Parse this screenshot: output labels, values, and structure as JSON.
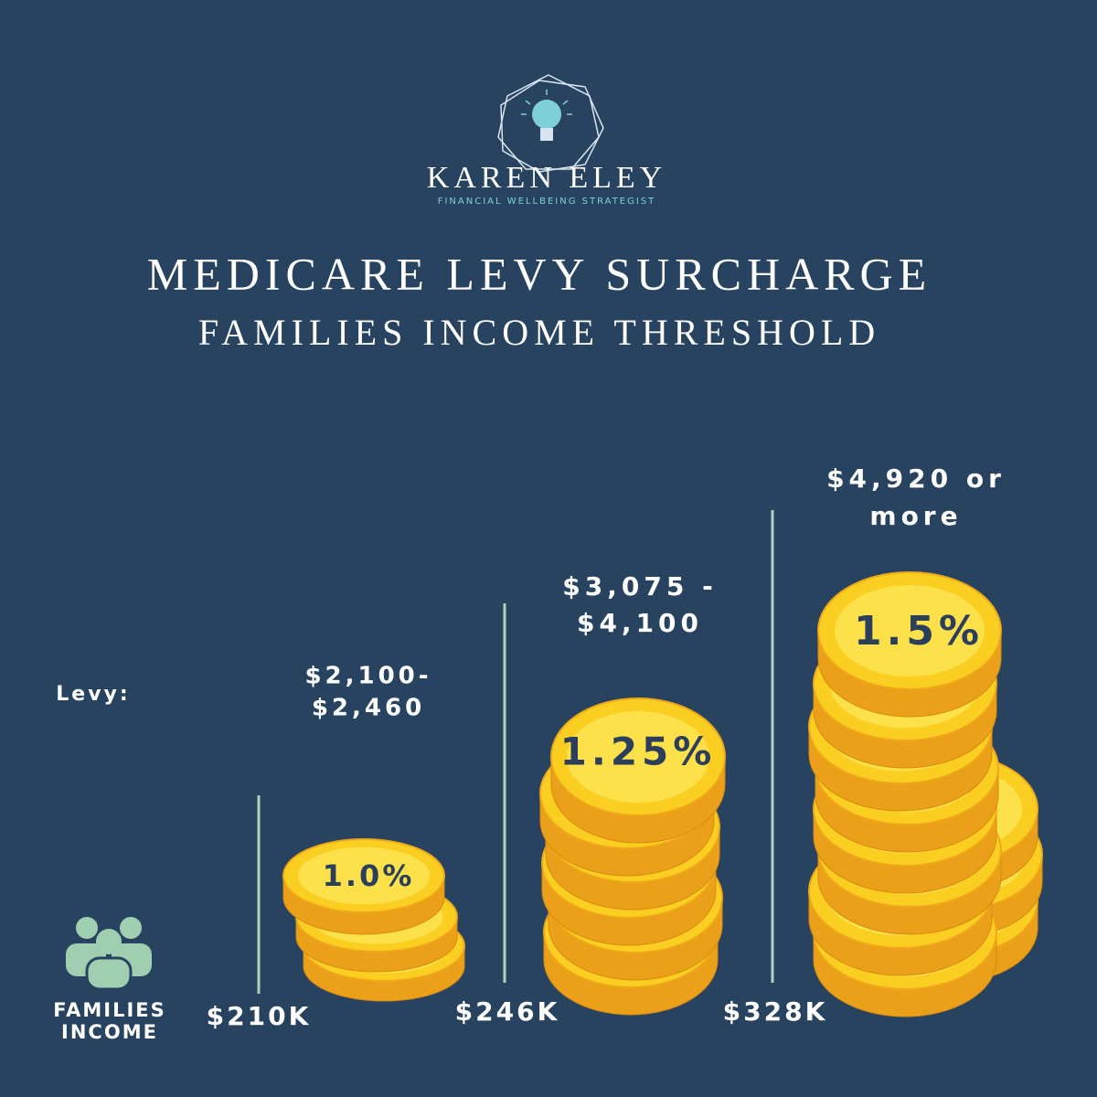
{
  "brand": {
    "name": "KAREN ELEY",
    "tagline": "FINANCIAL WELLBEING STRATEGIST"
  },
  "title": {
    "line1": "MEDICARE LEVY SURCHARGE",
    "line2": "FAMILIES INCOME THRESHOLD"
  },
  "levy_label": "Levy:",
  "income_label": [
    "FAMILIES",
    "INCOME"
  ],
  "tiers": [
    {
      "levy": [
        "$2,100-",
        "$2,460"
      ],
      "rate": "1.0%",
      "threshold": "$210K"
    },
    {
      "levy": [
        "$3,075 -",
        "$4,100"
      ],
      "rate": "1.25%",
      "threshold": "$246K"
    },
    {
      "levy": [
        "$4,920 or",
        "more"
      ],
      "rate": "1.5%",
      "threshold": "$328K"
    }
  ]
}
